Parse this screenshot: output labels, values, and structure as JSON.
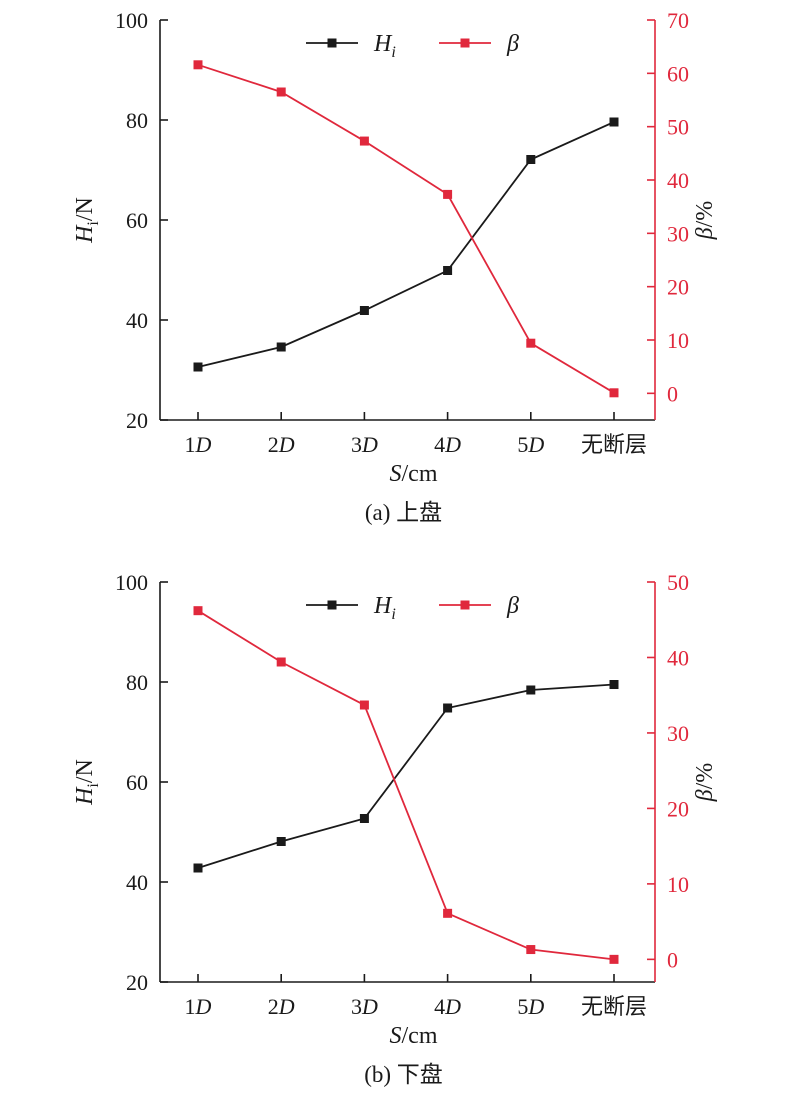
{
  "colors": {
    "black": "#1a1a1a",
    "red": "#e0283c"
  },
  "chart_data": [
    {
      "type": "line",
      "caption": "(a) 上盘",
      "categories": [
        "1D",
        "2D",
        "3D",
        "4D",
        "5D",
        "无断层"
      ],
      "xlabel": {
        "italic": "S",
        "rest": "/cm"
      },
      "ylabel_left": {
        "main": "H",
        "sub": "i",
        "rest": "/N"
      },
      "ylabel_right": {
        "main": "β",
        "rest": "/%"
      },
      "ylim_left": [
        20,
        100
      ],
      "yticks_left": [
        20,
        40,
        60,
        80,
        100
      ],
      "ylim_right": [
        -5,
        70
      ],
      "yticks_right": [
        0,
        10,
        20,
        30,
        40,
        50,
        60,
        70
      ],
      "grid": false,
      "legend_position": "top-center",
      "series": [
        {
          "name": "Hi",
          "legend_main": "H",
          "legend_sub": "i",
          "axis": "left",
          "color": "#1a1a1a",
          "values": [
            30.6,
            34.6,
            41.9,
            49.9,
            72.1,
            79.6
          ]
        },
        {
          "name": "β",
          "legend_main": "β",
          "legend_sub": "",
          "axis": "right",
          "color": "#e0283c",
          "values": [
            61.6,
            56.5,
            47.3,
            37.3,
            9.4,
            0.1
          ]
        }
      ]
    },
    {
      "type": "line",
      "caption": "(b) 下盘",
      "categories": [
        "1D",
        "2D",
        "3D",
        "4D",
        "5D",
        "无断层"
      ],
      "xlabel": {
        "italic": "S",
        "rest": "/cm"
      },
      "ylabel_left": {
        "main": "H",
        "sub": "i",
        "rest": "/N"
      },
      "ylabel_right": {
        "main": "β",
        "rest": "/%"
      },
      "ylim_left": [
        20,
        100
      ],
      "yticks_left": [
        20,
        40,
        60,
        80,
        100
      ],
      "ylim_right": [
        -3,
        50
      ],
      "yticks_right": [
        0,
        10,
        20,
        30,
        40,
        50
      ],
      "grid": false,
      "legend_position": "top-center",
      "series": [
        {
          "name": "Hi",
          "legend_main": "H",
          "legend_sub": "i",
          "axis": "left",
          "color": "#1a1a1a",
          "values": [
            42.8,
            48.1,
            52.7,
            74.8,
            78.4,
            79.5
          ]
        },
        {
          "name": "β",
          "legend_main": "β",
          "legend_sub": "",
          "axis": "right",
          "color": "#e0283c",
          "values": [
            46.2,
            39.4,
            33.7,
            6.1,
            1.3,
            0.0
          ]
        }
      ]
    }
  ]
}
